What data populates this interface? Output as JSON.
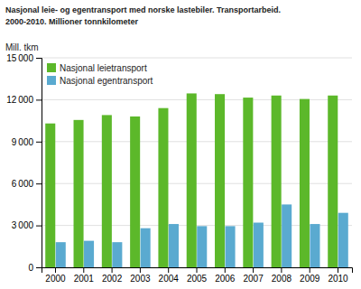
{
  "chart_data": {
    "type": "bar",
    "title": "Nasjonal leie- og egentransport med norske lastebiler. Transportarbeid.",
    "subtitle": "2000-2010. Millioner tonnkilometer",
    "ylabel": "Mill. tkm",
    "categories": [
      "2000",
      "2001",
      "2002",
      "2003",
      "2004",
      "2005",
      "2006",
      "2007",
      "2008",
      "2009",
      "2010"
    ],
    "series": [
      {
        "name": "Nasjonal leietransport",
        "color": "#5cb82a",
        "values": [
          10300,
          10550,
          10900,
          10800,
          11400,
          12450,
          12400,
          12150,
          12300,
          12050,
          12300
        ]
      },
      {
        "name": "Nasjonal egentransport",
        "color": "#5aaad0",
        "values": [
          1800,
          1900,
          1800,
          2800,
          3100,
          2950,
          2950,
          3200,
          4500,
          3100,
          3900
        ]
      }
    ],
    "ylim": [
      0,
      15000
    ],
    "yticks": [
      0,
      {
        "value": 3000,
        "label": "3 000"
      },
      {
        "value": 6000,
        "label": "6 000"
      },
      {
        "value": 9000,
        "label": "9 000"
      },
      {
        "value": 12000,
        "label": "12 000"
      },
      {
        "value": 15000,
        "label": "15 000"
      }
    ],
    "grid": true,
    "legend": "upper left"
  }
}
